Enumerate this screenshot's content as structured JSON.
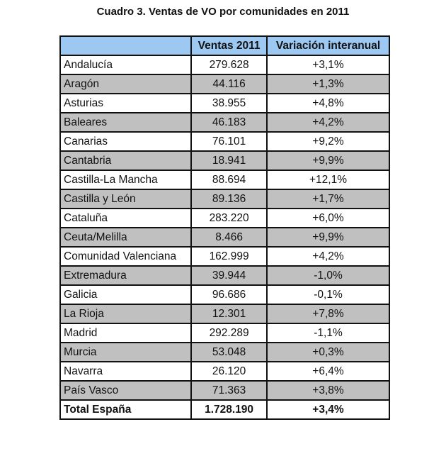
{
  "title": "Cuadro 3. Ventas de VO por comunidades en 2011",
  "colors": {
    "header_bg": "#9cc8f2",
    "alt_row_bg": "#c0c0c0"
  },
  "headers": [
    "",
    "Ventas 2011",
    "Variación interanual"
  ],
  "rows": [
    {
      "region": "Andalucía",
      "ventas": "279.628",
      "variacion": "+3,1%"
    },
    {
      "region": "Aragón",
      "ventas": "44.116",
      "variacion": "+1,3%"
    },
    {
      "region": "Asturias",
      "ventas": "38.955",
      "variacion": "+4,8%"
    },
    {
      "region": "Baleares",
      "ventas": "46.183",
      "variacion": "+4,2%"
    },
    {
      "region": "Canarias",
      "ventas": "76.101",
      "variacion": "+9,2%"
    },
    {
      "region": "Cantabria",
      "ventas": "18.941",
      "variacion": "+9,9%"
    },
    {
      "region": "Castilla-La Mancha",
      "ventas": "88.694",
      "variacion": "+12,1%"
    },
    {
      "region": "Castilla y León",
      "ventas": "89.136",
      "variacion": "+1,7%"
    },
    {
      "region": "Cataluña",
      "ventas": "283.220",
      "variacion": "+6,0%"
    },
    {
      "region": "Ceuta/Melilla",
      "ventas": "8.466",
      "variacion": "+9,9%"
    },
    {
      "region": "Comunidad Valenciana",
      "ventas": "162.999",
      "variacion": "+4,2%"
    },
    {
      "region": "Extremadura",
      "ventas": "39.944",
      "variacion": "-1,0%"
    },
    {
      "region": "Galicia",
      "ventas": "96.686",
      "variacion": "-0,1%"
    },
    {
      "region": "La Rioja",
      "ventas": "12.301",
      "variacion": "+7,8%"
    },
    {
      "region": "Madrid",
      "ventas": "292.289",
      "variacion": "-1,1%"
    },
    {
      "region": "Murcia",
      "ventas": "53.048",
      "variacion": "+0,3%"
    },
    {
      "region": "Navarra",
      "ventas": "26.120",
      "variacion": "+6,4%"
    },
    {
      "region": "País Vasco",
      "ventas": "71.363",
      "variacion": "+3,8%"
    }
  ],
  "total": {
    "region": "Total España",
    "ventas": "1.728.190",
    "variacion": "+3,4%"
  }
}
